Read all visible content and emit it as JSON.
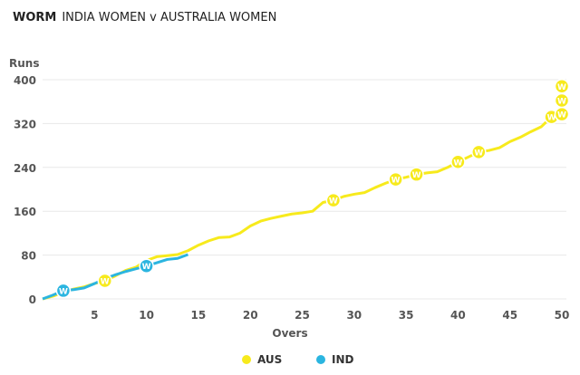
{
  "header": {
    "label": "WORM",
    "match": "INDIA WOMEN v AUSTRALIA WOMEN"
  },
  "chart_data": {
    "type": "line",
    "title": "",
    "xlabel": "Overs",
    "ylabel": "Runs",
    "xlim": [
      0,
      50
    ],
    "ylim": [
      0,
      400
    ],
    "xticks": [
      5,
      10,
      15,
      20,
      25,
      30,
      35,
      40,
      45,
      50
    ],
    "yticks": [
      0,
      80,
      160,
      240,
      320,
      400
    ],
    "grid": true,
    "legend": "bottom",
    "wicket_marker": "W",
    "series": [
      {
        "name": "AUS",
        "color": "#f7ea1c",
        "x": [
          0,
          1,
          2,
          3,
          4,
          5,
          6,
          7,
          8,
          9,
          10,
          11,
          12,
          13,
          14,
          15,
          16,
          17,
          18,
          19,
          20,
          21,
          22,
          23,
          24,
          25,
          26,
          27,
          28,
          29,
          30,
          31,
          32,
          33,
          34,
          35,
          36,
          37,
          38,
          39,
          40,
          41,
          42,
          43,
          44,
          45,
          46,
          47,
          48,
          49,
          50
        ],
        "y": [
          0,
          5,
          12,
          18,
          22,
          28,
          33,
          42,
          52,
          58,
          70,
          77,
          79,
          81,
          88,
          98,
          106,
          112,
          113,
          120,
          133,
          142,
          147,
          151,
          155,
          157,
          160,
          176,
          180,
          187,
          191,
          194,
          203,
          211,
          218,
          222,
          227,
          230,
          232,
          240,
          250,
          259,
          268,
          271,
          276,
          287,
          295,
          305,
          314,
          332,
          337
        ],
        "wickets": [
          [
            6,
            33
          ],
          [
            28,
            180
          ],
          [
            34,
            218
          ],
          [
            36,
            227
          ],
          [
            40,
            250
          ],
          [
            42,
            268
          ],
          [
            49,
            332
          ],
          [
            50,
            337
          ],
          [
            50,
            362
          ],
          [
            50,
            388
          ]
        ]
      },
      {
        "name": "IND",
        "color": "#2bb5e0",
        "x": [
          0,
          1,
          2,
          3,
          4,
          5,
          6,
          7,
          8,
          9,
          10,
          11,
          12,
          13,
          14
        ],
        "y": [
          0,
          7,
          15,
          17,
          20,
          28,
          37,
          44,
          50,
          55,
          60,
          66,
          72,
          74,
          81
        ],
        "wickets": [
          [
            2,
            15
          ],
          [
            10,
            60
          ]
        ]
      }
    ]
  }
}
